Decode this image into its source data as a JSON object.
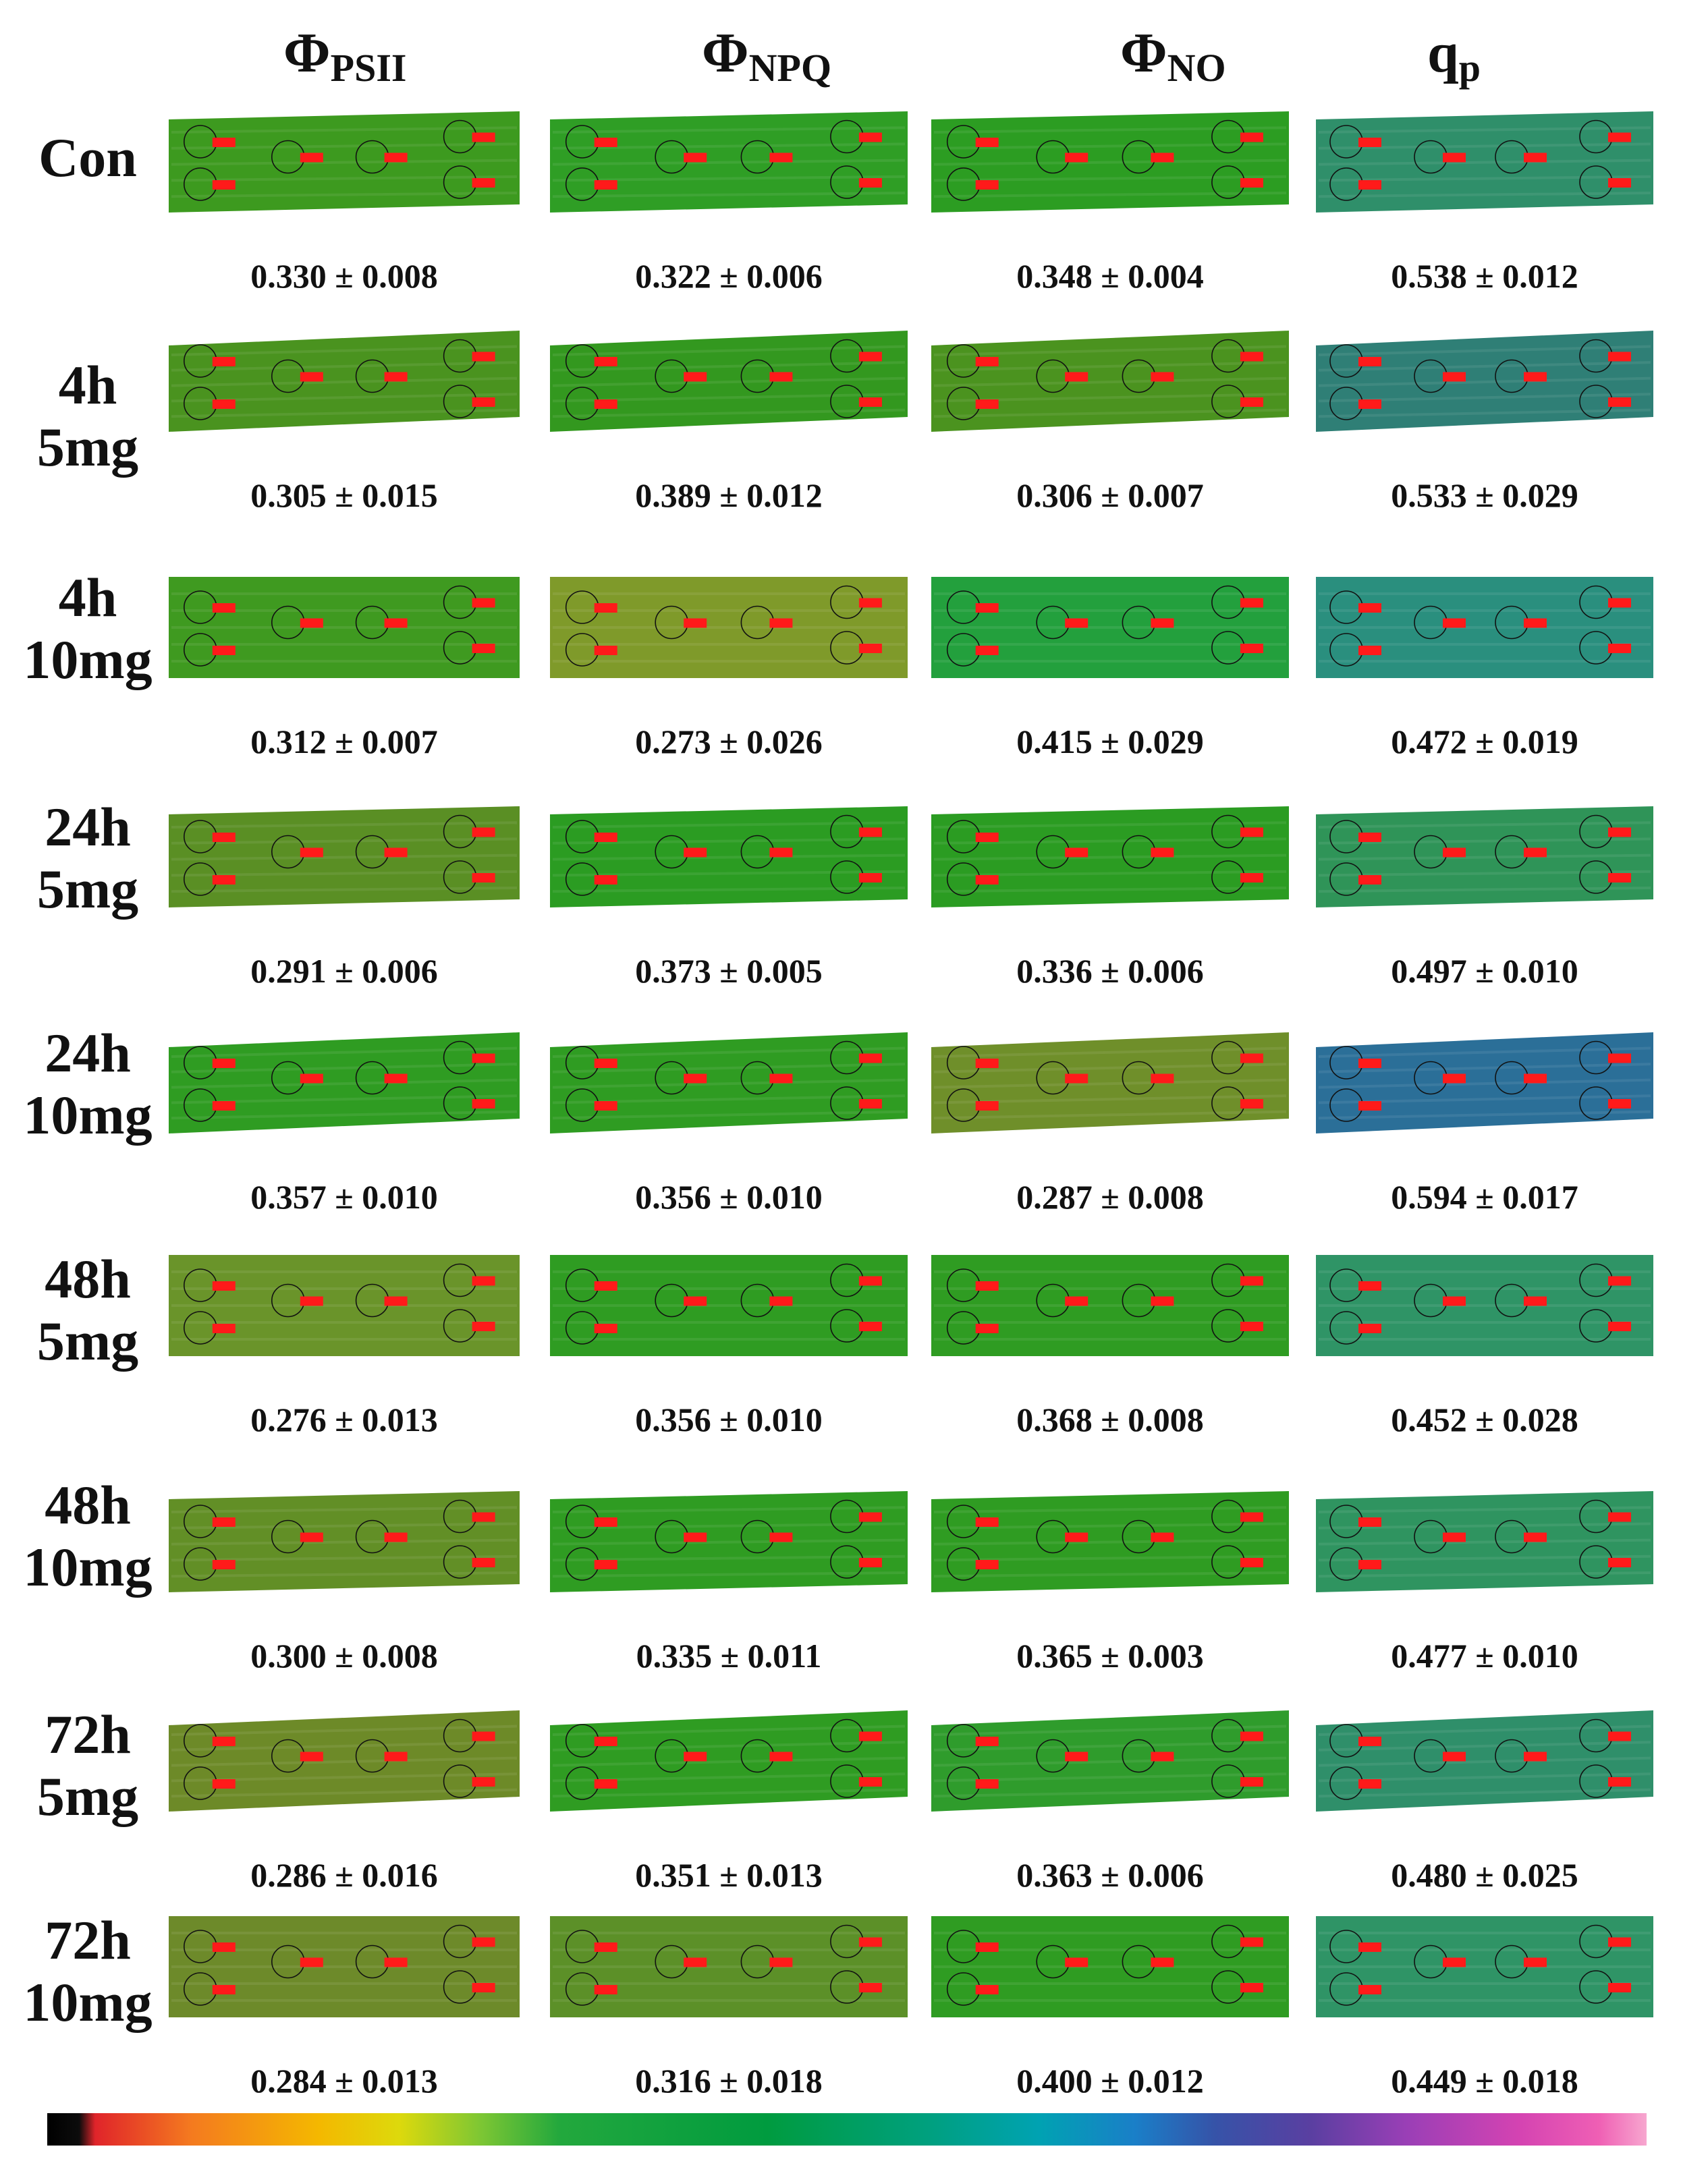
{
  "columns": [
    {
      "symbol": "Φ",
      "subscript": "PSII"
    },
    {
      "symbol": "Φ",
      "subscript": "NPQ"
    },
    {
      "symbol": "Φ",
      "subscript": "NO"
    },
    {
      "symbol": "q",
      "subscript": "p"
    }
  ],
  "rows": [
    {
      "label_line1": "Con",
      "label_line2": "",
      "values": [
        "0.330 ± 0.008",
        "0.322 ± 0.006",
        "0.348 ± 0.004",
        "0.538 ± 0.012"
      ]
    },
    {
      "label_line1": "4h",
      "label_line2": "5mg",
      "values": [
        "0.305 ± 0.015",
        "0.389 ± 0.012",
        "0.306 ± 0.007",
        "0.533 ± 0.029"
      ]
    },
    {
      "label_line1": "4h",
      "label_line2": "10mg",
      "values": [
        "0.312 ± 0.007",
        "0.273 ± 0.026",
        "0.415 ± 0.029",
        "0.472 ± 0.019"
      ]
    },
    {
      "label_line1": "24h",
      "label_line2": "5mg",
      "values": [
        "0.291 ± 0.006",
        "0.373 ± 0.005",
        "0.336 ± 0.006",
        "0.497 ± 0.010"
      ]
    },
    {
      "label_line1": "24h",
      "label_line2": "10mg",
      "values": [
        "0.357 ± 0.010",
        "0.356 ± 0.010",
        "0.287 ± 0.008",
        "0.594 ± 0.017"
      ]
    },
    {
      "label_line1": "48h",
      "label_line2": "5mg",
      "values": [
        "0.276 ± 0.013",
        "0.356 ± 0.010",
        "0.368 ± 0.008",
        "0.452 ± 0.028"
      ]
    },
    {
      "label_line1": "48h",
      "label_line2": "10mg",
      "values": [
        "0.300 ± 0.008",
        "0.335 ± 0.011",
        "0.365 ± 0.003",
        "0.477 ± 0.010"
      ]
    },
    {
      "label_line1": "72h",
      "label_line2": "5mg",
      "values": [
        "0.286 ± 0.016",
        "0.351 ± 0.013",
        "0.363 ± 0.006",
        "0.480 ± 0.025"
      ]
    },
    {
      "label_line1": "72h",
      "label_line2": "10mg",
      "values": [
        "0.284 ± 0.013",
        "0.316 ± 0.018",
        "0.400 ± 0.012",
        "0.449 ± 0.018"
      ]
    }
  ],
  "leaf_tints": [
    [
      "#3d9a1f",
      "#2f9e25",
      "#2c9d22",
      "#2f8f6a"
    ],
    [
      "#4a931f",
      "#33981f",
      "#4b931f",
      "#2f7f76"
    ],
    [
      "#3f9a20",
      "#7f9a2a",
      "#23a03d",
      "#2a8f7e"
    ],
    [
      "#5a8f24",
      "#2b9c22",
      "#2b9c22",
      "#2f9458"
    ],
    [
      "#2f9c22",
      "#2f9c22",
      "#6f8f2a",
      "#2b6f98"
    ],
    [
      "#6a942a",
      "#2f9c22",
      "#2f9c22",
      "#2f9466"
    ],
    [
      "#628f26",
      "#2f9c22",
      "#2f9c22",
      "#2f9460"
    ],
    [
      "#6d8a28",
      "#2f9c22",
      "#2f9c2c",
      "#2f8f6a"
    ],
    [
      "#6d8a2a",
      "#5c9028",
      "#2f9c22",
      "#2f9466"
    ]
  ],
  "colorbar": {
    "stops": [
      "#000000",
      "#e0242a",
      "#f4b800",
      "#23a83d",
      "#009b3f",
      "#00a2b2",
      "#3653a8",
      "#9a3fb6",
      "#f7a7cf"
    ]
  }
}
